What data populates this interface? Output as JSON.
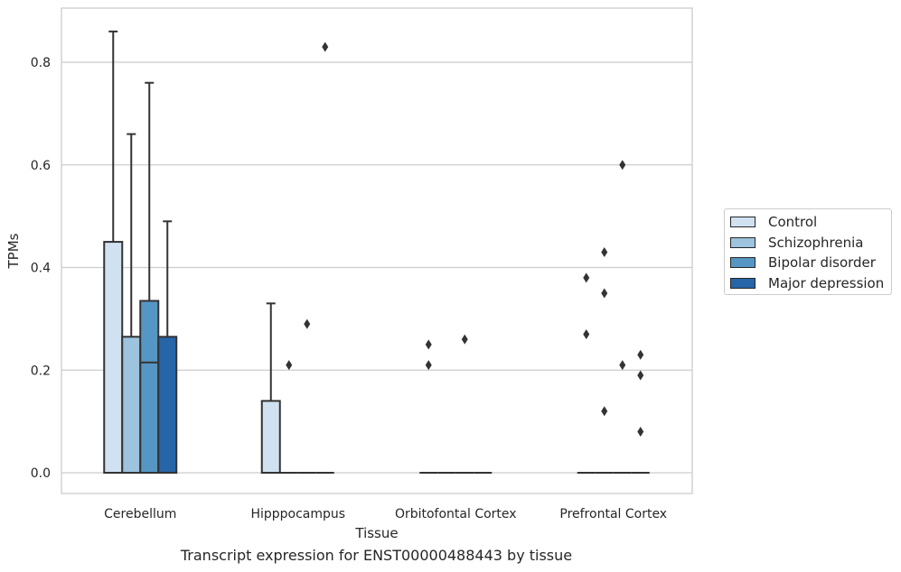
{
  "chart_data": {
    "type": "box",
    "title": "Transcript expression for ENST00000488443 by tissue",
    "xlabel": "Tissue",
    "ylabel": "TPMs",
    "ylim": [
      -0.04,
      0.905
    ],
    "yticks": [
      "0.0",
      "0.2",
      "0.4",
      "0.6",
      "0.8"
    ],
    "grid": true,
    "legend_position": "center-right, outside",
    "categories": [
      "Cerebellum",
      "Hipppocampus",
      "Orbitofontal Cortex",
      "Prefrontal Cortex"
    ],
    "series": [
      {
        "name": "Control",
        "color": "#d0e1f1",
        "boxes": [
          {
            "min": 0,
            "q1": 0,
            "median": 0,
            "q3": 0.45,
            "max": 0.86,
            "outliers": []
          },
          {
            "min": 0,
            "q1": 0,
            "median": 0,
            "q3": 0.14,
            "max": 0.33,
            "outliers": []
          },
          {
            "min": 0,
            "q1": 0,
            "median": 0,
            "q3": 0,
            "max": 0,
            "outliers": [
              0.25,
              0.21
            ]
          },
          {
            "min": 0,
            "q1": 0,
            "median": 0,
            "q3": 0,
            "max": 0,
            "outliers": [
              0.38,
              0.27
            ]
          }
        ]
      },
      {
        "name": "Schizophrenia",
        "color": "#9dc3de",
        "boxes": [
          {
            "min": 0,
            "q1": 0,
            "median": 0,
            "q3": 0.265,
            "max": 0.66,
            "outliers": []
          },
          {
            "min": 0,
            "q1": 0,
            "median": 0,
            "q3": 0,
            "max": 0,
            "outliers": [
              0.21
            ]
          },
          {
            "min": 0,
            "q1": 0,
            "median": 0,
            "q3": 0,
            "max": 0,
            "outliers": []
          },
          {
            "min": 0,
            "q1": 0,
            "median": 0,
            "q3": 0,
            "max": 0,
            "outliers": [
              0.43,
              0.35,
              0.12
            ]
          }
        ]
      },
      {
        "name": "Bipolar disorder",
        "color": "#5596c4",
        "boxes": [
          {
            "min": 0,
            "q1": 0,
            "median": 0.215,
            "q3": 0.335,
            "max": 0.76,
            "outliers": []
          },
          {
            "min": 0,
            "q1": 0,
            "median": 0,
            "q3": 0,
            "max": 0,
            "outliers": [
              0.29
            ]
          },
          {
            "min": 0,
            "q1": 0,
            "median": 0,
            "q3": 0,
            "max": 0,
            "outliers": [
              0.26
            ]
          },
          {
            "min": 0,
            "q1": 0,
            "median": 0,
            "q3": 0,
            "max": 0,
            "outliers": [
              0.6,
              0.21
            ]
          }
        ]
      },
      {
        "name": "Major depression",
        "color": "#2665a7",
        "boxes": [
          {
            "min": 0,
            "q1": 0,
            "median": 0,
            "q3": 0.265,
            "max": 0.49,
            "outliers": []
          },
          {
            "min": 0,
            "q1": 0,
            "median": 0,
            "q3": 0,
            "max": 0,
            "outliers": [
              0.83
            ]
          },
          {
            "min": 0,
            "q1": 0,
            "median": 0,
            "q3": 0,
            "max": 0,
            "outliers": []
          },
          {
            "min": 0,
            "q1": 0,
            "median": 0,
            "q3": 0,
            "max": 0,
            "outliers": [
              0.23,
              0.19,
              0.08
            ]
          }
        ]
      }
    ]
  }
}
